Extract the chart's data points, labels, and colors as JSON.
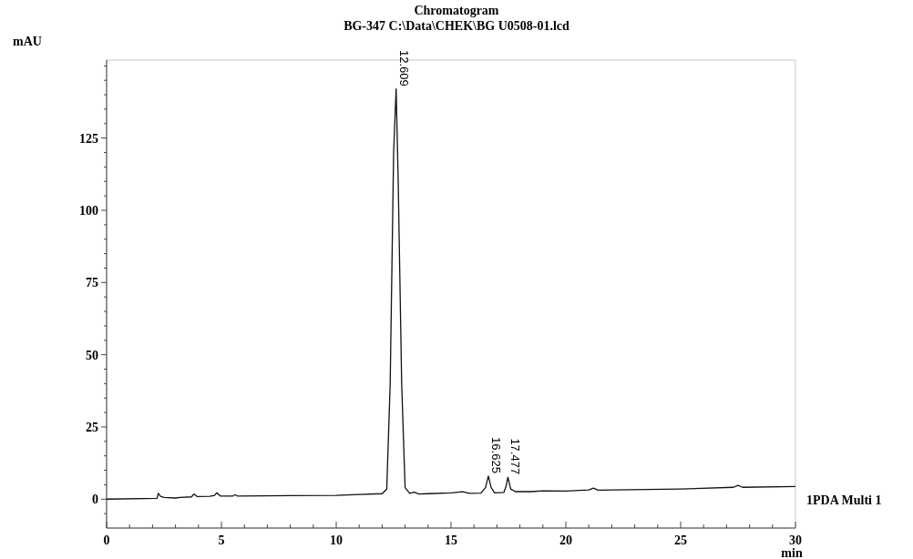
{
  "chart_data": {
    "type": "line",
    "title": "Chromatogram",
    "subtitle": "BG-347 C:\\Data\\CHEK\\BG U0508-01.lcd",
    "xlabel": "min",
    "ylabel": "mAU",
    "xlim": [
      0,
      30
    ],
    "ylim": [
      -10,
      152
    ],
    "xticks": [
      0,
      {
        "value": 1,
        "label": null
      },
      {
        "value": 2,
        "label": null
      },
      {
        "value": 3,
        "label": null
      },
      {
        "value": 4,
        "label": null
      },
      5,
      {
        "value": 6,
        "label": null
      },
      {
        "value": 7,
        "label": null
      },
      {
        "value": 8,
        "label": null
      },
      {
        "value": 9,
        "label": null
      },
      10,
      {
        "value": 11,
        "label": null
      },
      {
        "value": 12,
        "label": null
      },
      {
        "value": 13,
        "label": null
      },
      {
        "value": 14,
        "label": null
      },
      15,
      {
        "value": 16,
        "label": null
      },
      {
        "value": 17,
        "label": null
      },
      {
        "value": 18,
        "label": null
      },
      {
        "value": 19,
        "label": null
      },
      20,
      {
        "value": 21,
        "label": null
      },
      {
        "value": 22,
        "label": null
      },
      {
        "value": 23,
        "label": null
      },
      {
        "value": 24,
        "label": null
      },
      25,
      {
        "value": 26,
        "label": null
      },
      {
        "value": 27,
        "label": null
      },
      {
        "value": 28,
        "label": null
      },
      {
        "value": 29,
        "label": null
      },
      30
    ],
    "yticks": [
      {
        "value": -5,
        "label": null
      },
      0,
      {
        "value": 5,
        "label": null
      },
      {
        "value": 10,
        "label": null
      },
      {
        "value": 15,
        "label": null
      },
      {
        "value": 20,
        "label": null
      },
      25,
      {
        "value": 30,
        "label": null
      },
      {
        "value": 35,
        "label": null
      },
      {
        "value": 40,
        "label": null
      },
      {
        "value": 45,
        "label": null
      },
      50,
      {
        "value": 55,
        "label": null
      },
      {
        "value": 60,
        "label": null
      },
      {
        "value": 65,
        "label": null
      },
      {
        "value": 70,
        "label": null
      },
      75,
      {
        "value": 80,
        "label": null
      },
      {
        "value": 85,
        "label": null
      },
      {
        "value": 90,
        "label": null
      },
      {
        "value": 95,
        "label": null
      },
      100,
      {
        "value": 105,
        "label": null
      },
      {
        "value": 110,
        "label": null
      },
      {
        "value": 115,
        "label": null
      },
      {
        "value": 120,
        "label": null
      },
      125,
      {
        "value": 130,
        "label": null
      },
      {
        "value": 135,
        "label": null
      },
      {
        "value": 140,
        "label": null
      },
      {
        "value": 145,
        "label": null
      },
      {
        "value": 150,
        "label": null
      }
    ],
    "grid": false,
    "legend": false,
    "marker": "none",
    "line_style": "solid",
    "series": [
      {
        "name": "1PDA Multi 1",
        "color": "#111111",
        "x": [
          0,
          2.2,
          2.25,
          2.35,
          2.5,
          3.0,
          3.2,
          3.7,
          3.8,
          3.95,
          4.5,
          4.7,
          4.8,
          4.95,
          5.5,
          5.6,
          5.7,
          8,
          10,
          11,
          12.0,
          12.2,
          12.35,
          12.5,
          12.609,
          12.7,
          12.85,
          13.0,
          13.2,
          13.4,
          13.6,
          14,
          15,
          15.5,
          15.8,
          16.3,
          16.5,
          16.625,
          16.75,
          16.9,
          17.3,
          17.4,
          17.477,
          17.6,
          17.8,
          18.5,
          19,
          20,
          21,
          21.2,
          21.4,
          25,
          27.3,
          27.5,
          27.7,
          30
        ],
        "values": [
          0,
          0.3,
          2.0,
          1.0,
          0.6,
          0.4,
          0.6,
          0.8,
          1.8,
          0.9,
          1.0,
          1.3,
          2.2,
          1.1,
          1.1,
          1.5,
          1.1,
          1.2,
          1.3,
          1.6,
          1.9,
          3.5,
          40,
          120,
          142,
          110,
          40,
          4,
          2,
          2.4,
          1.8,
          1.9,
          2.2,
          2.6,
          2.0,
          2.1,
          4,
          8,
          4,
          2.2,
          2.3,
          4.5,
          7.6,
          3.5,
          2.6,
          2.6,
          2.9,
          2.8,
          3.2,
          3.8,
          3.1,
          3.5,
          4.1,
          4.8,
          4.1,
          4.4
        ]
      }
    ],
    "annotations": [
      {
        "text": "12.609",
        "x": 12.609,
        "y": 142
      },
      {
        "text": "16.625",
        "x": 16.625,
        "y": 8
      },
      {
        "text": "17.477",
        "x": 17.477,
        "y": 7.6
      }
    ]
  }
}
